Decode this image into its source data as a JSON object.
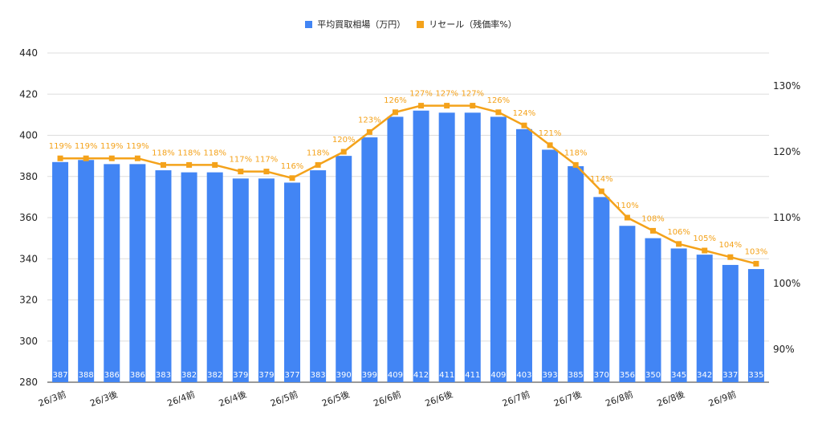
{
  "chart_data": {
    "type": "bar",
    "categories": [
      "26/3前",
      "",
      "26/3後",
      "",
      "",
      "26/4前",
      "",
      "26/4後",
      "",
      "26/5前",
      "",
      "26/5後",
      "",
      "26/6前",
      "",
      "26/6後",
      "",
      "",
      "26/7前",
      "",
      "26/7後",
      "",
      "26/8前",
      "",
      "26/8後",
      "",
      "26/9前",
      ""
    ],
    "series": [
      {
        "name": "平均買取相場（万円）",
        "type": "bar",
        "axis": "left",
        "color": "#4285F4",
        "values": [
          387,
          388,
          386,
          386,
          383,
          382,
          382,
          379,
          379,
          377,
          383,
          390,
          399,
          409,
          412,
          411,
          411,
          409,
          403,
          393,
          385,
          370,
          356,
          350,
          345,
          342,
          337,
          335
        ],
        "labels": [
          "387",
          "388",
          "386",
          "386",
          "383",
          "382",
          "382",
          "379",
          "379",
          "377",
          "383",
          "390",
          "399",
          "409",
          "412",
          "411",
          "411",
          "409",
          "403",
          "393",
          "385",
          "370",
          "356",
          "350",
          "345",
          "342",
          "337",
          "335"
        ]
      },
      {
        "name": "リセール（残価率%）",
        "type": "line",
        "axis": "right",
        "color": "#F4A21A",
        "values": [
          119,
          119,
          119,
          119,
          118,
          118,
          118,
          117,
          117,
          116,
          118,
          120,
          123,
          126,
          127,
          127,
          127,
          126,
          124,
          121,
          118,
          114,
          110,
          108,
          106,
          105,
          104,
          103
        ],
        "labels": [
          "119%",
          "119%",
          "119%",
          "119%",
          "118%",
          "118%",
          "118%",
          "117%",
          "117%",
          "116%",
          "118%",
          "120%",
          "123%",
          "126%",
          "127%",
          "127%",
          "127%",
          "126%",
          "124%",
          "121%",
          "118%",
          "114%",
          "110%",
          "108%",
          "106%",
          "105%",
          "104%",
          "103%"
        ]
      }
    ],
    "y_left": {
      "min": 280,
      "max": 440,
      "ticks": [
        "280",
        "300",
        "320",
        "340",
        "360",
        "380",
        "400",
        "420",
        "440"
      ]
    },
    "y_right": {
      "min": 85,
      "max": 135,
      "ticks": [
        "90%",
        "100%",
        "110%",
        "120%",
        "130%"
      ],
      "tick_values": [
        90,
        100,
        110,
        120,
        130
      ]
    },
    "grid": true,
    "legend_position": "top"
  }
}
